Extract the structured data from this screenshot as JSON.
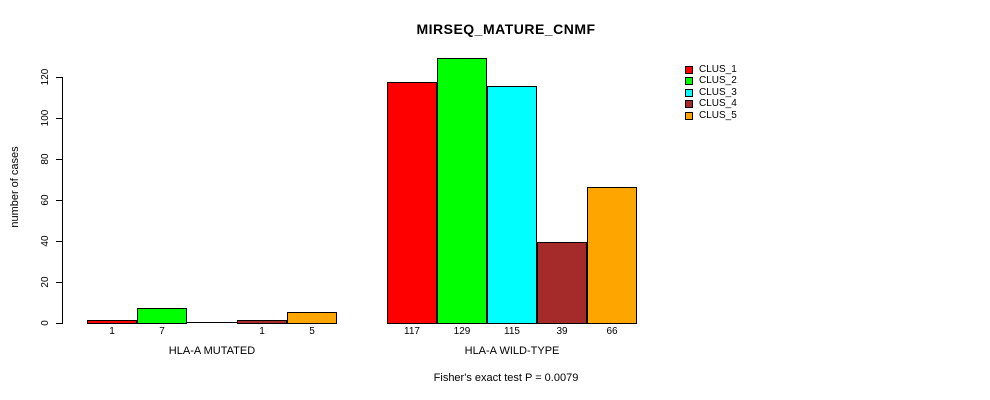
{
  "chart_data": {
    "type": "bar",
    "title": "MIRSEQ_MATURE_CNMF",
    "ylabel": "number of cases",
    "annotation": "Fisher's exact test P = 0.0079",
    "ylim": [
      0,
      120
    ],
    "yticks": [
      0,
      20,
      40,
      60,
      80,
      100,
      120
    ],
    "grid": false,
    "legend_position": "top-right",
    "categories": [
      "HLA-A MUTATED",
      "HLA-A WILD-TYPE"
    ],
    "series": [
      {
        "name": "CLUS_1",
        "color": "#FF0000",
        "values": [
          1,
          117
        ]
      },
      {
        "name": "CLUS_2",
        "color": "#00FF00",
        "values": [
          7,
          129
        ]
      },
      {
        "name": "CLUS_3",
        "color": "#00FFFF",
        "values": [
          0,
          115
        ]
      },
      {
        "name": "CLUS_4",
        "color": "#A52A2A",
        "values": [
          1,
          39
        ]
      },
      {
        "name": "CLUS_5",
        "color": "#FFA500",
        "values": [
          5,
          66
        ]
      }
    ],
    "groups": [
      {
        "label": "HLA-A MUTATED",
        "values": [
          1,
          7,
          0,
          1,
          5
        ],
        "value_labels": [
          "1",
          "7",
          "",
          "1",
          "5"
        ]
      },
      {
        "label": "HLA-A WILD-TYPE",
        "values": [
          117,
          129,
          115,
          39,
          66
        ],
        "value_labels": [
          "117",
          "129",
          "115",
          "39",
          "66"
        ]
      }
    ]
  }
}
